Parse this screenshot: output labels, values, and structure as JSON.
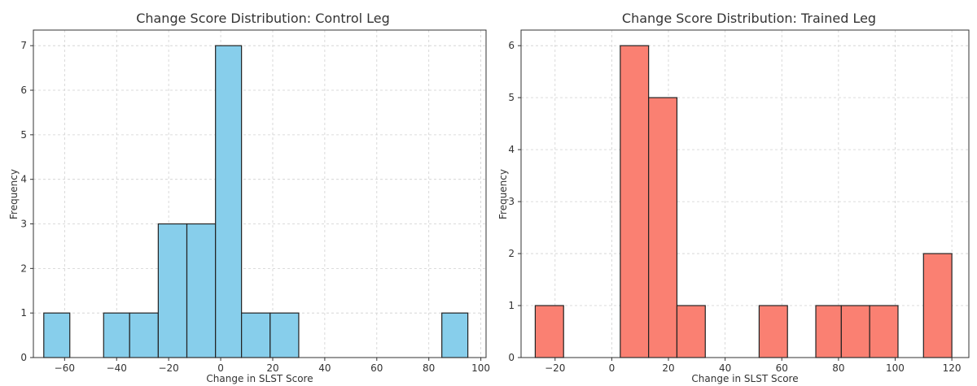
{
  "chart_data": [
    {
      "type": "bar",
      "title": "Change Score Distribution: Control Leg",
      "xlabel": "Change in SLST Score",
      "ylabel": "Frequency",
      "color": "#87CEEB",
      "xlim": [
        -72,
        102
      ],
      "ylim": [
        0,
        7.35
      ],
      "xticks": [
        -60,
        -40,
        -20,
        0,
        20,
        40,
        60,
        80,
        100
      ],
      "yticks": [
        0,
        1,
        2,
        3,
        4,
        5,
        6,
        7
      ],
      "bins": [
        {
          "x0": -68,
          "x1": -58,
          "count": 1
        },
        {
          "x0": -45,
          "x1": -35,
          "count": 1
        },
        {
          "x0": -35,
          "x1": -24,
          "count": 1
        },
        {
          "x0": -24,
          "x1": -13,
          "count": 3
        },
        {
          "x0": -13,
          "x1": -2,
          "count": 3
        },
        {
          "x0": -2,
          "x1": 8,
          "count": 7
        },
        {
          "x0": 8,
          "x1": 19,
          "count": 1
        },
        {
          "x0": 19,
          "x1": 30,
          "count": 1
        },
        {
          "x0": 85,
          "x1": 95,
          "count": 1
        }
      ]
    },
    {
      "type": "bar",
      "title": "Change Score Distribution: Trained Leg",
      "xlabel": "Change in SLST Score",
      "ylabel": "Frequency",
      "color": "#FA8072",
      "xlim": [
        -32,
        126
      ],
      "ylim": [
        0,
        6.3
      ],
      "xticks": [
        -20,
        0,
        20,
        40,
        60,
        80,
        100,
        120
      ],
      "yticks": [
        0,
        1,
        2,
        3,
        4,
        5,
        6
      ],
      "bins": [
        {
          "x0": -27,
          "x1": -17,
          "count": 1
        },
        {
          "x0": 3,
          "x1": 13,
          "count": 6
        },
        {
          "x0": 13,
          "x1": 23,
          "count": 5
        },
        {
          "x0": 23,
          "x1": 33,
          "count": 1
        },
        {
          "x0": 52,
          "x1": 62,
          "count": 1
        },
        {
          "x0": 72,
          "x1": 81,
          "count": 1
        },
        {
          "x0": 81,
          "x1": 91,
          "count": 1
        },
        {
          "x0": 91,
          "x1": 101,
          "count": 1
        },
        {
          "x0": 110,
          "x1": 120,
          "count": 2
        }
      ]
    }
  ]
}
